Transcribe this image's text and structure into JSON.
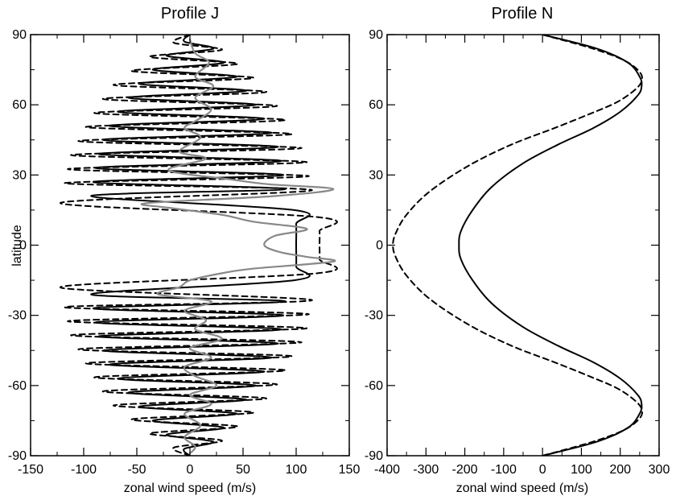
{
  "chart_data": [
    {
      "type": "line",
      "title": "Profile J",
      "xlabel": "zonal wind speed (m/s)",
      "ylabel": "latitude",
      "xlim": [
        -150,
        150
      ],
      "ylim": [
        -90,
        90
      ],
      "x_ticks": [
        "-150",
        "-100",
        "-50",
        "0",
        "50",
        "100",
        "150"
      ],
      "y_ticks": [
        "90",
        "60",
        "30",
        "0",
        "-30",
        "-60",
        "-90"
      ],
      "grid": false,
      "legend": null,
      "series": [
        {
          "style": "solid",
          "color": "#000000",
          "description_points": [
            [
              0,
              90
            ],
            [
              -5,
              87
            ],
            [
              22,
              84
            ],
            [
              -22,
              81
            ],
            [
              32,
              78
            ],
            [
              -35,
              75
            ],
            [
              44,
              72
            ],
            [
              -48,
              69
            ],
            [
              53,
              66
            ],
            [
              -58,
              63
            ],
            [
              62,
              60
            ],
            [
              -68,
              57
            ],
            [
              70,
              54
            ],
            [
              -76,
              51
            ],
            [
              77,
              48
            ],
            [
              -82,
              45
            ],
            [
              83,
              42
            ],
            [
              -86,
              39
            ],
            [
              86,
              36
            ],
            [
              -89,
              33
            ],
            [
              88,
              30
            ],
            [
              -91,
              27
            ],
            [
              90,
              24
            ],
            [
              -93,
              21
            ],
            [
              98,
              15
            ],
            [
              100,
              9
            ],
            [
              100,
              0
            ],
            [
              100,
              -9
            ],
            [
              98,
              -15
            ],
            [
              -93,
              -21
            ],
            [
              90,
              -24
            ],
            [
              -91,
              -27
            ],
            [
              88,
              -30
            ],
            [
              -89,
              -33
            ],
            [
              86,
              -36
            ],
            [
              -86,
              -39
            ],
            [
              83,
              -42
            ],
            [
              -82,
              -45
            ],
            [
              77,
              -48
            ],
            [
              -76,
              -51
            ],
            [
              70,
              -54
            ],
            [
              -68,
              -57
            ],
            [
              62,
              -60
            ],
            [
              -58,
              -63
            ],
            [
              53,
              -66
            ],
            [
              -48,
              -69
            ],
            [
              44,
              -72
            ],
            [
              -35,
              -75
            ],
            [
              32,
              -78
            ],
            [
              -22,
              -81
            ],
            [
              22,
              -84
            ],
            [
              -5,
              -87
            ],
            [
              0,
              -90
            ]
          ]
        },
        {
          "style": "dashed",
          "color": "#000000",
          "description_points": [
            [
              0,
              90
            ],
            [
              -15,
              86.5
            ],
            [
              30,
              83.5
            ],
            [
              -38,
              80.5
            ],
            [
              45,
              77.5
            ],
            [
              -55,
              74.5
            ],
            [
              60,
              71.5
            ],
            [
              -72,
              68.5
            ],
            [
              72,
              65.5
            ],
            [
              -82,
              62.5
            ],
            [
              82,
              59.5
            ],
            [
              -90,
              56.5
            ],
            [
              90,
              53.5
            ],
            [
              -98,
              50.5
            ],
            [
              96,
              47.5
            ],
            [
              -105,
              44.5
            ],
            [
              105,
              41.5
            ],
            [
              -112,
              38.5
            ],
            [
              110,
              35.5
            ],
            [
              -115,
              32.5
            ],
            [
              112,
              29.5
            ],
            [
              -118,
              26.5
            ],
            [
              115,
              23.5
            ],
            [
              -122,
              18
            ],
            [
              120,
              12
            ],
            [
              122,
              6
            ],
            [
              122,
              0
            ],
            [
              122,
              -6
            ],
            [
              120,
              -12
            ],
            [
              -122,
              -18
            ],
            [
              115,
              -23.5
            ],
            [
              -118,
              -26.5
            ],
            [
              112,
              -29.5
            ],
            [
              -115,
              -32.5
            ],
            [
              110,
              -35.5
            ],
            [
              -112,
              -38.5
            ],
            [
              105,
              -41.5
            ],
            [
              -105,
              -44.5
            ],
            [
              96,
              -47.5
            ],
            [
              -98,
              -50.5
            ],
            [
              90,
              -53.5
            ],
            [
              -90,
              -56.5
            ],
            [
              82,
              -59.5
            ],
            [
              -82,
              -62.5
            ],
            [
              72,
              -65.5
            ],
            [
              -72,
              -68.5
            ],
            [
              60,
              -71.5
            ],
            [
              -55,
              -74.5
            ],
            [
              45,
              -77.5
            ],
            [
              -38,
              -80.5
            ],
            [
              30,
              -83.5
            ],
            [
              -15,
              -86.5
            ],
            [
              0,
              -90
            ]
          ]
        },
        {
          "style": "solid",
          "color": "#888888",
          "description_points": [
            [
              0,
              88
            ],
            [
              5,
              82
            ],
            [
              18,
              78
            ],
            [
              5,
              72
            ],
            [
              22,
              68
            ],
            [
              5,
              63
            ],
            [
              20,
              58
            ],
            [
              5,
              53
            ],
            [
              -5,
              50
            ],
            [
              10,
              46
            ],
            [
              -10,
              40
            ],
            [
              15,
              37
            ],
            [
              -20,
              32
            ],
            [
              40,
              28
            ],
            [
              75,
              26
            ],
            [
              135,
              24
            ],
            [
              80,
              21
            ],
            [
              -40,
              18
            ],
            [
              -20,
              16
            ],
            [
              30,
              13
            ],
            [
              60,
              10
            ],
            [
              110,
              7
            ],
            [
              80,
              4
            ],
            [
              70,
              0
            ],
            [
              85,
              -3
            ],
            [
              110,
              -5
            ],
            [
              135,
              -7
            ],
            [
              60,
              -10
            ],
            [
              30,
              -12
            ],
            [
              0,
              -15
            ],
            [
              -10,
              -18
            ],
            [
              -30,
              -21
            ],
            [
              20,
              -24
            ],
            [
              -5,
              -28
            ],
            [
              15,
              -32
            ],
            [
              5,
              -36
            ],
            [
              30,
              -40
            ],
            [
              0,
              -44
            ],
            [
              20,
              -48
            ],
            [
              -5,
              -52
            ],
            [
              5,
              -56
            ],
            [
              25,
              -60
            ],
            [
              0,
              -64
            ],
            [
              20,
              -68
            ],
            [
              -5,
              -72
            ],
            [
              10,
              -77
            ],
            [
              -5,
              -82
            ],
            [
              5,
              -86
            ],
            [
              0,
              -89
            ]
          ]
        }
      ]
    },
    {
      "type": "line",
      "title": "Profile N",
      "xlabel": "zonal wind speed (m/s)",
      "ylabel": "",
      "xlim": [
        -400,
        300
      ],
      "ylim": [
        -90,
        90
      ],
      "x_ticks": [
        "-400",
        "-300",
        "-200",
        "-100",
        "0",
        "100",
        "200",
        "300"
      ],
      "y_ticks": [
        "90",
        "60",
        "30",
        "0",
        "-30",
        "-60",
        "-90"
      ],
      "grid": false,
      "legend": null,
      "series": [
        {
          "style": "solid",
          "color": "#000000",
          "description_points": [
            [
              0,
              90
            ],
            [
              140,
              84
            ],
            [
              220,
              78
            ],
            [
              250,
              72
            ],
            [
              255,
              68
            ],
            [
              245,
              64
            ],
            [
              200,
              57
            ],
            [
              130,
              50
            ],
            [
              40,
              43
            ],
            [
              -50,
              35
            ],
            [
              -130,
              25
            ],
            [
              -180,
              15
            ],
            [
              -210,
              6
            ],
            [
              -215,
              0
            ],
            [
              -210,
              -6
            ],
            [
              -180,
              -15
            ],
            [
              -130,
              -25
            ],
            [
              -50,
              -35
            ],
            [
              40,
              -43
            ],
            [
              130,
              -50
            ],
            [
              200,
              -57
            ],
            [
              245,
              -64
            ],
            [
              255,
              -68
            ],
            [
              250,
              -72
            ],
            [
              220,
              -78
            ],
            [
              140,
              -84
            ],
            [
              0,
              -90
            ]
          ]
        },
        {
          "style": "dashed",
          "color": "#000000",
          "description_points": [
            [
              0,
              90
            ],
            [
              130,
              84
            ],
            [
              210,
              79
            ],
            [
              250,
              74
            ],
            [
              255,
              70
            ],
            [
              235,
              66
            ],
            [
              190,
              61
            ],
            [
              120,
              56
            ],
            [
              30,
              50
            ],
            [
              -80,
              43
            ],
            [
              -190,
              34
            ],
            [
              -290,
              23
            ],
            [
              -350,
              13
            ],
            [
              -378,
              5
            ],
            [
              -385,
              0
            ],
            [
              -378,
              -5
            ],
            [
              -350,
              -13
            ],
            [
              -290,
              -23
            ],
            [
              -190,
              -34
            ],
            [
              -80,
              -43
            ],
            [
              30,
              -50
            ],
            [
              120,
              -56
            ],
            [
              190,
              -61
            ],
            [
              235,
              -66
            ],
            [
              255,
              -70
            ],
            [
              250,
              -74
            ],
            [
              210,
              -79
            ],
            [
              130,
              -84
            ],
            [
              0,
              -90
            ]
          ]
        }
      ]
    }
  ]
}
